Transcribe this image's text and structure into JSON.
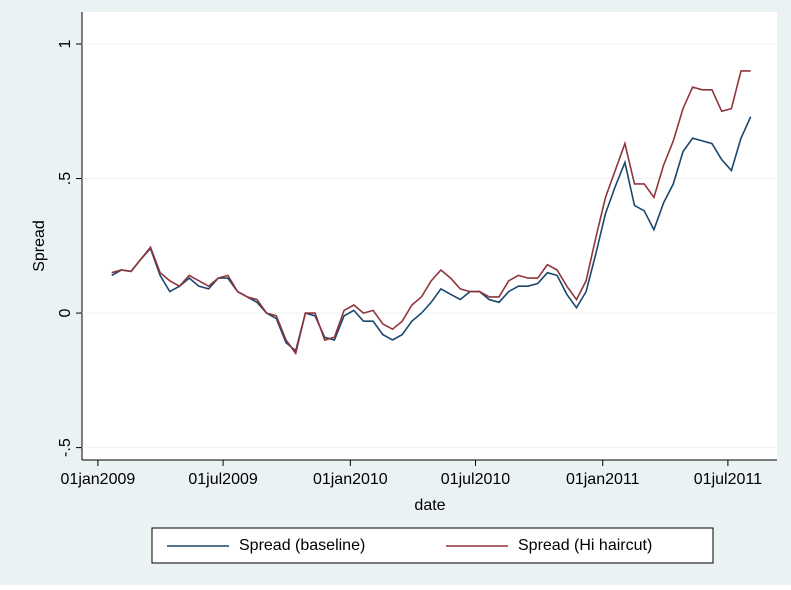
{
  "chart_data": {
    "type": "line",
    "y_label": "Spread",
    "x_label": "date",
    "x": [
      "2009-01-21",
      "2009-02-04",
      "2009-02-18",
      "2009-03-04",
      "2009-03-18",
      "2009-04-01",
      "2009-04-15",
      "2009-04-29",
      "2009-05-13",
      "2009-05-27",
      "2009-06-10",
      "2009-06-24",
      "2009-07-08",
      "2009-07-22",
      "2009-08-05",
      "2009-08-19",
      "2009-09-02",
      "2009-09-16",
      "2009-09-30",
      "2009-10-14",
      "2009-10-28",
      "2009-11-11",
      "2009-11-25",
      "2009-12-09",
      "2009-12-23",
      "2010-01-06",
      "2010-01-20",
      "2010-02-03",
      "2010-02-17",
      "2010-03-03",
      "2010-03-17",
      "2010-03-31",
      "2010-04-14",
      "2010-04-28",
      "2010-05-12",
      "2010-05-26",
      "2010-06-09",
      "2010-06-23",
      "2010-07-07",
      "2010-07-21",
      "2010-08-04",
      "2010-08-18",
      "2010-09-01",
      "2010-09-15",
      "2010-09-29",
      "2010-10-13",
      "2010-10-27",
      "2010-11-10",
      "2010-11-24",
      "2010-12-08",
      "2010-12-22",
      "2011-01-05",
      "2011-01-19",
      "2011-02-02",
      "2011-02-16",
      "2011-03-02",
      "2011-03-16",
      "2011-03-30",
      "2011-04-13",
      "2011-04-27",
      "2011-05-11",
      "2011-05-25",
      "2011-06-08",
      "2011-06-22",
      "2011-07-06",
      "2011-07-20",
      "2011-08-03"
    ],
    "series": [
      {
        "name": "Spread (baseline)",
        "color": "#1a476f",
        "values": [
          0.14,
          0.16,
          0.155,
          0.2,
          0.24,
          0.14,
          0.08,
          0.1,
          0.13,
          0.1,
          0.09,
          0.13,
          0.13,
          0.08,
          0.06,
          0.04,
          0.0,
          -0.02,
          -0.11,
          -0.14,
          0.0,
          -0.01,
          -0.09,
          -0.1,
          -0.01,
          0.01,
          -0.03,
          -0.03,
          -0.08,
          -0.1,
          -0.08,
          -0.03,
          0.0,
          0.04,
          0.09,
          0.07,
          0.05,
          0.08,
          0.08,
          0.05,
          0.04,
          0.08,
          0.1,
          0.1,
          0.11,
          0.15,
          0.14,
          0.07,
          0.02,
          0.08,
          0.22,
          0.37,
          0.47,
          0.56,
          0.4,
          0.38,
          0.31,
          0.41,
          0.48,
          0.6,
          0.65,
          0.64,
          0.63,
          0.57,
          0.53,
          0.65,
          0.73
        ]
      },
      {
        "name": "Spread (Hi haircut)",
        "color": "#90353b",
        "values": [
          0.15,
          0.16,
          0.155,
          0.2,
          0.245,
          0.15,
          0.12,
          0.1,
          0.14,
          0.12,
          0.1,
          0.13,
          0.14,
          0.08,
          0.06,
          0.05,
          0.0,
          -0.01,
          -0.1,
          -0.15,
          0.0,
          0.0,
          -0.1,
          -0.09,
          0.01,
          0.03,
          0.0,
          0.01,
          -0.04,
          -0.06,
          -0.03,
          0.03,
          0.06,
          0.12,
          0.16,
          0.13,
          0.09,
          0.08,
          0.08,
          0.06,
          0.06,
          0.12,
          0.14,
          0.13,
          0.13,
          0.18,
          0.16,
          0.1,
          0.05,
          0.12,
          0.28,
          0.43,
          0.53,
          0.63,
          0.48,
          0.48,
          0.43,
          0.55,
          0.64,
          0.76,
          0.84,
          0.83,
          0.83,
          0.75,
          0.76,
          0.9,
          0.9
        ]
      }
    ],
    "xlim": [
      "2008-12-09",
      "2011-09-10"
    ],
    "xticks": [
      {
        "value": "2009-01-01",
        "label": "01jan2009"
      },
      {
        "value": "2009-07-01",
        "label": "01jul2009"
      },
      {
        "value": "2010-01-01",
        "label": "01jan2010"
      },
      {
        "value": "2010-07-01",
        "label": "01jul2010"
      },
      {
        "value": "2011-01-01",
        "label": "01jan2011"
      },
      {
        "value": "2011-07-01",
        "label": "01jul2011"
      }
    ],
    "ylim": [
      -0.546,
      1.119
    ],
    "yticks": [
      {
        "value": -0.5,
        "label": "-.5"
      },
      0,
      {
        "value": 0.5,
        "label": ".5"
      },
      1
    ],
    "grid": true
  }
}
